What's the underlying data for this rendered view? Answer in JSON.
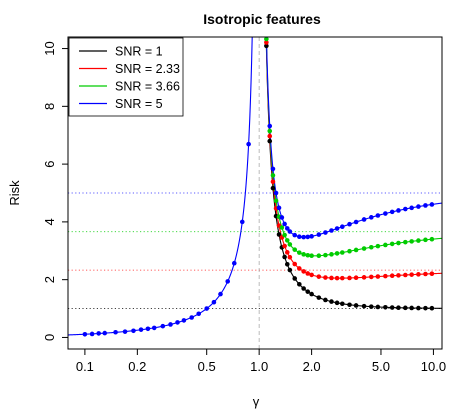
{
  "chart_data": {
    "type": "line",
    "title": "Isotropic features",
    "xlabel": "γ",
    "ylabel": "Risk",
    "x_scale": "log",
    "xlim": [
      0.08,
      11.2
    ],
    "ylim": [
      -0.4,
      10.4
    ],
    "x_ticks": [
      0.1,
      0.2,
      0.5,
      1.0,
      2.0,
      5.0,
      10.0
    ],
    "x_tick_labels": [
      "0.1",
      "0.2",
      "0.5",
      "1.0",
      "2.0",
      "5.0",
      "10.0"
    ],
    "y_ticks": [
      0,
      2,
      4,
      6,
      8,
      10
    ],
    "y_tick_labels": [
      "0",
      "2",
      "4",
      "6",
      "8",
      "10"
    ],
    "legend_position": "top-left",
    "vertical_reference_line": {
      "x": 1.0,
      "color": "#aaaaaa",
      "style": "dashed"
    },
    "under_param_points": {
      "x": [
        0.1,
        0.11,
        0.12,
        0.13,
        0.15,
        0.17,
        0.19,
        0.21,
        0.23,
        0.25,
        0.28,
        0.31,
        0.34,
        0.37,
        0.41,
        0.45,
        0.5,
        0.55,
        0.6,
        0.66,
        0.72,
        0.8,
        0.87
      ],
      "values": [
        0.11,
        0.12,
        0.14,
        0.15,
        0.18,
        0.2,
        0.23,
        0.27,
        0.3,
        0.33,
        0.39,
        0.45,
        0.52,
        0.59,
        0.69,
        0.82,
        1.0,
        1.22,
        1.5,
        1.94,
        2.57,
        4.0,
        6.69
      ]
    },
    "series": [
      {
        "name": "SNR = 1",
        "snr": 1,
        "color": "#000000",
        "points_x": [
          1.1,
          1.15,
          1.2,
          1.25,
          1.3,
          1.35,
          1.4,
          1.45,
          1.5,
          1.6,
          1.7,
          1.8,
          1.9,
          2.0,
          2.2,
          2.4,
          2.6,
          2.8,
          3.0,
          3.3,
          3.6,
          4.0,
          4.4,
          4.8,
          5.3,
          5.8,
          6.3,
          6.9,
          7.5,
          8.2,
          9.0,
          9.8
        ]
      },
      {
        "name": "SNR = 2.33",
        "snr": 2.33,
        "color": "#ff0000",
        "points_x": [
          1.1,
          1.15,
          1.2,
          1.25,
          1.3,
          1.35,
          1.4,
          1.45,
          1.5,
          1.6,
          1.7,
          1.8,
          1.9,
          2.0,
          2.2,
          2.4,
          2.6,
          2.8,
          3.0,
          3.3,
          3.6,
          4.0,
          4.4,
          4.8,
          5.3,
          5.8,
          6.3,
          6.9,
          7.5,
          8.2,
          9.0,
          9.8
        ]
      },
      {
        "name": "SNR = 3.66",
        "snr": 3.66,
        "color": "#00cc00",
        "points_x": [
          1.1,
          1.15,
          1.2,
          1.25,
          1.3,
          1.35,
          1.4,
          1.45,
          1.5,
          1.6,
          1.7,
          1.8,
          1.9,
          2.0,
          2.2,
          2.4,
          2.6,
          2.8,
          3.0,
          3.3,
          3.6,
          4.0,
          4.4,
          4.8,
          5.3,
          5.8,
          6.3,
          6.9,
          7.5,
          8.2,
          9.0,
          9.8
        ]
      },
      {
        "name": "SNR = 5",
        "snr": 5,
        "color": "#0000ff",
        "points_x": [
          1.1,
          1.15,
          1.2,
          1.25,
          1.3,
          1.35,
          1.4,
          1.45,
          1.5,
          1.6,
          1.7,
          1.8,
          1.9,
          2.0,
          2.2,
          2.4,
          2.6,
          2.8,
          3.0,
          3.3,
          3.6,
          4.0,
          4.4,
          4.8,
          5.3,
          5.8,
          6.3,
          6.9,
          7.5,
          8.2,
          9.0,
          9.8
        ]
      }
    ]
  }
}
